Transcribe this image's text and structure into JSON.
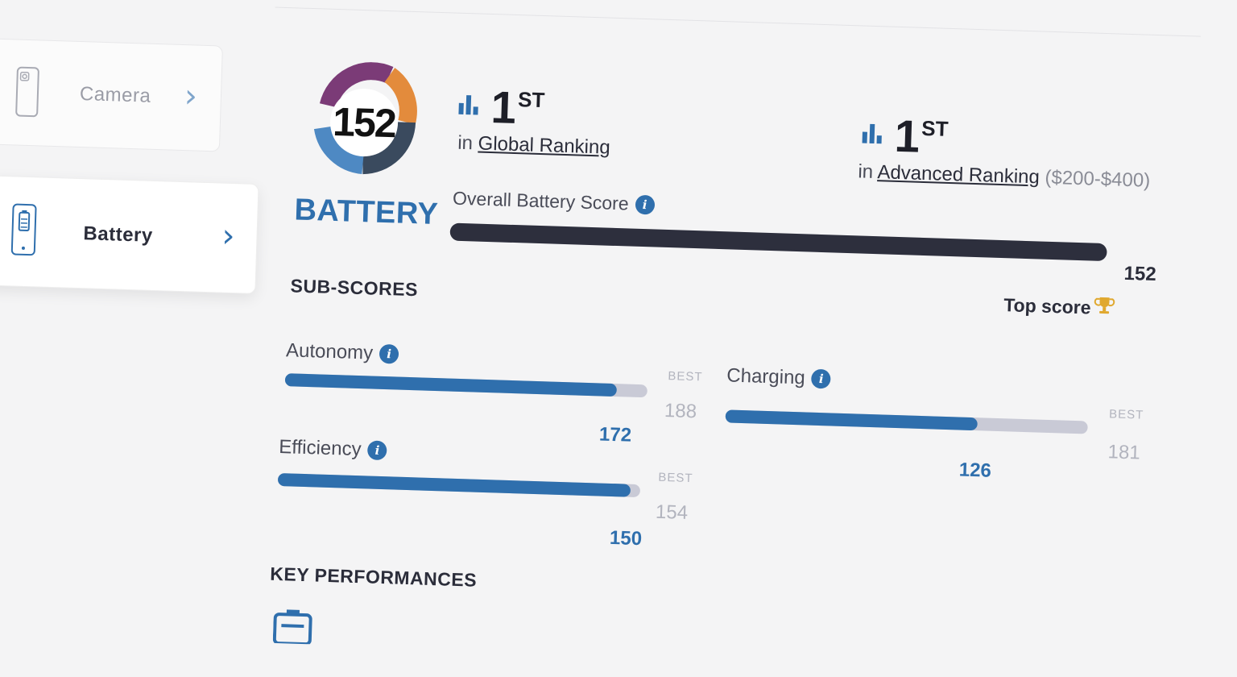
{
  "sidebar": {
    "items": [
      {
        "label": "Camera",
        "icon": "phone-camera-icon"
      },
      {
        "label": "Battery",
        "icon": "phone-battery-icon"
      }
    ]
  },
  "battery_badge": {
    "score": "152",
    "caption": "BATTERY"
  },
  "rankings": [
    {
      "rank": "1",
      "suffix": "ST",
      "prefix": "in",
      "link": "Global Ranking",
      "extra": ""
    },
    {
      "rank": "1",
      "suffix": "ST",
      "prefix": "in",
      "link": "Advanced Ranking",
      "extra": "($200-$400)"
    }
  ],
  "overall": {
    "label": "Overall Battery Score",
    "value": "152",
    "max": 152,
    "top_score_label": "Top score"
  },
  "sub_scores_title": "SUB-SCORES",
  "sub_scores": [
    {
      "name": "Autonomy",
      "score": "172",
      "best_caption": "BEST",
      "best": "188"
    },
    {
      "name": "Charging",
      "score": "126",
      "best_caption": "BEST",
      "best": "181"
    },
    {
      "name": "Efficiency",
      "score": "150",
      "best_caption": "BEST",
      "best": "154"
    }
  ],
  "key_performances_title": "KEY PERFORMANCES",
  "colors": {
    "accent": "#2f6fad",
    "dark_bar": "#2d2f3d",
    "track": "#c9cad6",
    "trophy": "#e0a82e"
  }
}
